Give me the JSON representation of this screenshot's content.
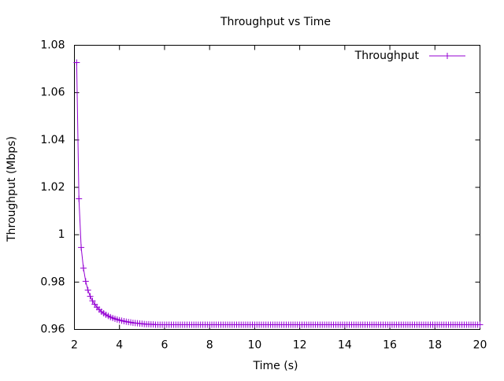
{
  "chart_data": {
    "type": "line",
    "title": "Throughput vs Time",
    "xlabel": "Time (s)",
    "ylabel": "Throughput (Mbps)",
    "xlim": [
      2,
      20
    ],
    "ylim": [
      0.96,
      1.08
    ],
    "xticks": [
      2,
      4,
      6,
      8,
      10,
      12,
      14,
      16,
      18,
      20
    ],
    "yticks": [
      0.96,
      0.98,
      1,
      1.02,
      1.04,
      1.06,
      1.08
    ],
    "grid": false,
    "legend": "top-right",
    "x": [
      2.1,
      2.2,
      2.3,
      2.4,
      2.5,
      2.6,
      2.7,
      2.8,
      2.9,
      3.0,
      3.1,
      3.2,
      3.3,
      3.4,
      3.5,
      3.6,
      3.7,
      3.8,
      3.9,
      4.0,
      4.1,
      4.2,
      4.3,
      4.4,
      4.5,
      4.6,
      4.7,
      4.8,
      4.9,
      5.0,
      5.1,
      5.2,
      5.3,
      5.4,
      5.5,
      5.6,
      5.7,
      5.8,
      5.9,
      6.0,
      6.1,
      6.2,
      6.3,
      6.4,
      6.5,
      6.6,
      6.7,
      6.8,
      6.9,
      7.0,
      7.1,
      7.2,
      7.3,
      7.4,
      7.5,
      7.6,
      7.7,
      7.8,
      7.9,
      8.0,
      8.1,
      8.2,
      8.3,
      8.4,
      8.5,
      8.6,
      8.7,
      8.8,
      8.9,
      9.0,
      9.1,
      9.2,
      9.3,
      9.4,
      9.5,
      9.6,
      9.7,
      9.8,
      9.9,
      10.0,
      10.1,
      10.2,
      10.3,
      10.4,
      10.5,
      10.6,
      10.7,
      10.8,
      10.9,
      11.0,
      11.1,
      11.2,
      11.3,
      11.4,
      11.5,
      11.6,
      11.7,
      11.8,
      11.9,
      12.0,
      12.1,
      12.2,
      12.3,
      12.4,
      12.5,
      12.6,
      12.7,
      12.8,
      12.9,
      13.0,
      13.1,
      13.2,
      13.3,
      13.4,
      13.5,
      13.6,
      13.7,
      13.8,
      13.9,
      14.0,
      14.1,
      14.2,
      14.3,
      14.4,
      14.5,
      14.6,
      14.7,
      14.8,
      14.9,
      15.0,
      15.1,
      15.2,
      15.3,
      15.4,
      15.5,
      15.6,
      15.7,
      15.8,
      15.9,
      16.0,
      16.1,
      16.2,
      16.3,
      16.4,
      16.5,
      16.6,
      16.7,
      16.8,
      16.9,
      17.0,
      17.1,
      17.2,
      17.3,
      17.4,
      17.5,
      17.6,
      17.7,
      17.8,
      17.9,
      18.0,
      18.1,
      18.2,
      18.3,
      18.4,
      18.5,
      18.6,
      18.7,
      18.8,
      18.9,
      19.0,
      19.1,
      19.2,
      19.3,
      19.4,
      19.5,
      19.6,
      19.7,
      19.8,
      19.9,
      20.0
    ],
    "series": [
      {
        "name": "Throughput",
        "color": "#9400d3",
        "values": [
          1.0727,
          1.0152,
          0.9946,
          0.9859,
          0.9803,
          0.9766,
          0.974,
          0.9721,
          0.9706,
          0.9694,
          0.9684,
          0.9675,
          0.9668,
          0.9662,
          0.9657,
          0.9652,
          0.9648,
          0.9645,
          0.9642,
          0.9639,
          0.9637,
          0.9635,
          0.9633,
          0.9631,
          0.963,
          0.9628,
          0.9627,
          0.9626,
          0.9625,
          0.9624,
          0.9623,
          0.9622,
          0.9622,
          0.9621,
          0.9621,
          0.962,
          0.962,
          0.962,
          0.962,
          0.962,
          0.962,
          0.962,
          0.962,
          0.962,
          0.962,
          0.962,
          0.962,
          0.962,
          0.962,
          0.962,
          0.962,
          0.962,
          0.962,
          0.962,
          0.962,
          0.962,
          0.962,
          0.962,
          0.962,
          0.962,
          0.962,
          0.962,
          0.962,
          0.962,
          0.962,
          0.962,
          0.962,
          0.962,
          0.962,
          0.962,
          0.962,
          0.962,
          0.962,
          0.962,
          0.962,
          0.962,
          0.962,
          0.962,
          0.962,
          0.962,
          0.962,
          0.962,
          0.962,
          0.962,
          0.962,
          0.962,
          0.962,
          0.962,
          0.962,
          0.962,
          0.962,
          0.962,
          0.962,
          0.962,
          0.962,
          0.962,
          0.962,
          0.962,
          0.962,
          0.962,
          0.962,
          0.962,
          0.962,
          0.962,
          0.962,
          0.962,
          0.962,
          0.962,
          0.962,
          0.962,
          0.962,
          0.962,
          0.962,
          0.962,
          0.962,
          0.962,
          0.962,
          0.962,
          0.962,
          0.962,
          0.962,
          0.962,
          0.962,
          0.962,
          0.962,
          0.962,
          0.962,
          0.962,
          0.962,
          0.962,
          0.962,
          0.962,
          0.962,
          0.962,
          0.962,
          0.962,
          0.962,
          0.962,
          0.962,
          0.962,
          0.962,
          0.962,
          0.962,
          0.962,
          0.962,
          0.962,
          0.962,
          0.962,
          0.962,
          0.962,
          0.962,
          0.962,
          0.962,
          0.962,
          0.962,
          0.962,
          0.962,
          0.962,
          0.962,
          0.962,
          0.962,
          0.962,
          0.962,
          0.962,
          0.962,
          0.962,
          0.962,
          0.962,
          0.962,
          0.962,
          0.962,
          0.962,
          0.962,
          0.962,
          0.962,
          0.962,
          0.962,
          0.962,
          0.962,
          0.962
        ]
      }
    ]
  }
}
